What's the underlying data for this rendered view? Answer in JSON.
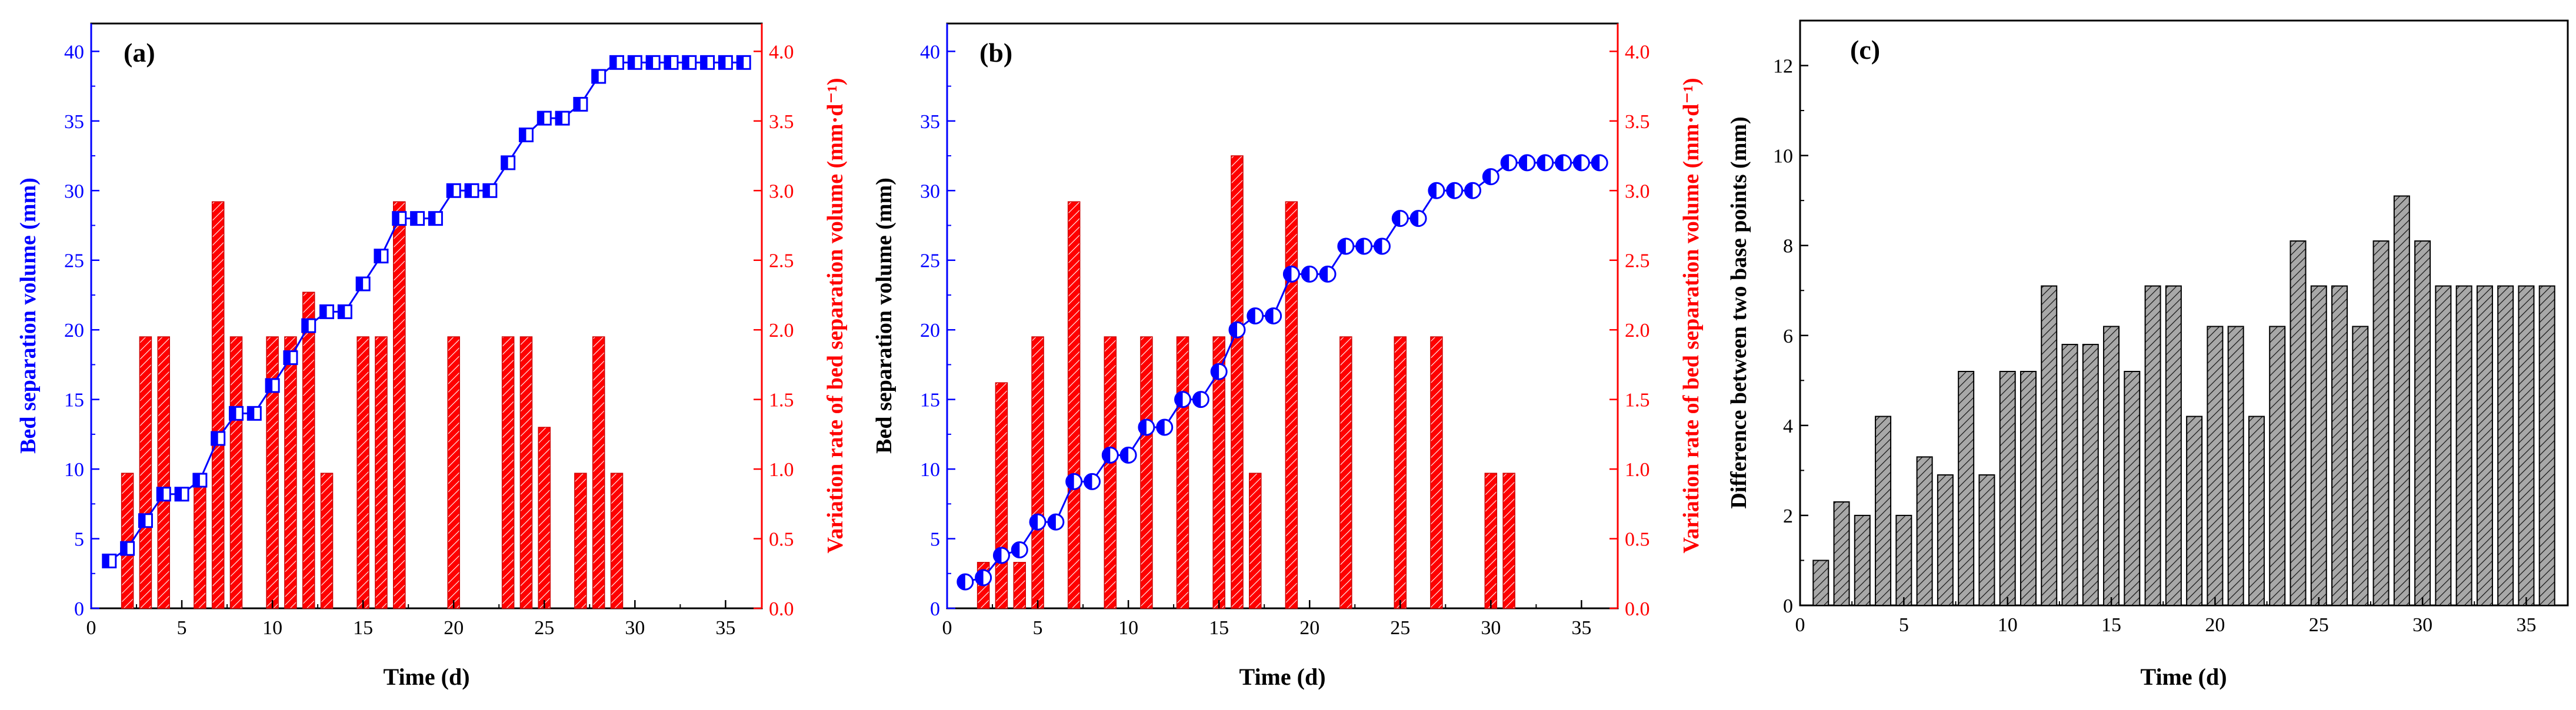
{
  "chart_data": [
    {
      "type": "bar+line",
      "panel_label": "(a)",
      "xlabel": "Time (d)",
      "ylabel_left": "Bed separation volume (mm)",
      "ylabel_right": "Variation rate of bed separation volume (mm·d⁻¹)",
      "xlim": [
        0,
        37
      ],
      "ylim_left": [
        0,
        42
      ],
      "ylim_right": [
        0,
        4.2
      ],
      "xticks": [
        0,
        5,
        10,
        15,
        20,
        25,
        30,
        35
      ],
      "yticks_left": [
        0,
        5,
        10,
        15,
        20,
        25,
        30,
        35,
        40
      ],
      "yticks_right": [
        0.0,
        0.5,
        1.0,
        1.5,
        2.0,
        2.5,
        3.0,
        3.5,
        4.0
      ],
      "xtick_labels": [
        "0",
        "5",
        "10",
        "15",
        "20",
        "25",
        "30",
        "35"
      ],
      "ytick_labels_left": [
        "0",
        "5",
        "10",
        "15",
        "20",
        "25",
        "30",
        "35",
        "40"
      ],
      "ytick_labels_right": [
        "0.0",
        "0.5",
        "1.0",
        "1.5",
        "2.0",
        "2.5",
        "3.0",
        "3.5",
        "4.0"
      ],
      "line_series": {
        "name": "Bed separation volume",
        "color": "#0000ff",
        "marker": "square-half",
        "x": [
          1,
          2,
          3,
          4,
          5,
          6,
          7,
          8,
          9,
          10,
          11,
          12,
          13,
          14,
          15,
          16,
          17,
          18,
          19,
          20,
          21,
          22,
          23,
          24,
          25,
          26,
          27,
          28,
          29,
          30,
          31,
          32,
          33,
          34,
          35,
          36
        ],
        "values": [
          3.4,
          4.3,
          6.3,
          8.2,
          8.2,
          9.2,
          12.2,
          14.0,
          14.0,
          16.0,
          18.0,
          20.3,
          21.3,
          21.3,
          23.3,
          25.3,
          28.0,
          28.0,
          28.0,
          30.0,
          30.0,
          30.0,
          32.0,
          34.0,
          35.2,
          35.2,
          36.2,
          38.2,
          39.2,
          39.2,
          39.2,
          39.2,
          39.2,
          39.2,
          39.2,
          39.2
        ]
      },
      "bar_series": {
        "name": "Variation rate",
        "color": "#ff0000",
        "x": [
          2,
          3,
          4,
          6,
          7,
          8,
          10,
          11,
          12,
          13,
          15,
          16,
          17,
          20,
          23,
          24,
          25,
          27,
          28,
          29
        ],
        "values": [
          0.97,
          1.95,
          1.95,
          0.97,
          2.92,
          1.95,
          1.95,
          1.95,
          2.27,
          0.97,
          1.95,
          1.95,
          2.92,
          1.95,
          1.95,
          1.95,
          1.3,
          0.97,
          1.95,
          0.97
        ]
      }
    },
    {
      "type": "bar+line",
      "panel_label": "(b)",
      "xlabel": "Time (d)",
      "ylabel_left": "Bed separation volume (mm)",
      "ylabel_right": "Variation rate of bed separation volume (mm·d⁻¹)",
      "xlim": [
        0,
        37
      ],
      "ylim_left": [
        0,
        42
      ],
      "ylim_right": [
        0,
        4.2
      ],
      "xticks": [
        0,
        5,
        10,
        15,
        20,
        25,
        30,
        35
      ],
      "yticks_left": [
        0,
        5,
        10,
        15,
        20,
        25,
        30,
        35,
        40
      ],
      "yticks_right": [
        0.0,
        0.5,
        1.0,
        1.5,
        2.0,
        2.5,
        3.0,
        3.5,
        4.0
      ],
      "xtick_labels": [
        "0",
        "5",
        "10",
        "15",
        "20",
        "25",
        "30",
        "35"
      ],
      "ytick_labels_left": [
        "0",
        "5",
        "10",
        "15",
        "20",
        "25",
        "30",
        "35",
        "40"
      ],
      "ytick_labels_right": [
        "0.0",
        "0.5",
        "1.0",
        "1.5",
        "2.0",
        "2.5",
        "3.0",
        "3.5",
        "4.0"
      ],
      "line_series": {
        "name": "Bed separation volume",
        "color": "#0000ff",
        "marker": "circle-half",
        "x": [
          1,
          2,
          3,
          4,
          5,
          6,
          7,
          8,
          9,
          10,
          11,
          12,
          13,
          14,
          15,
          16,
          17,
          18,
          19,
          20,
          21,
          22,
          23,
          24,
          25,
          26,
          27,
          28,
          29,
          30,
          31,
          32,
          33,
          34,
          35,
          36
        ],
        "values": [
          1.9,
          2.2,
          3.8,
          4.2,
          6.2,
          6.2,
          9.1,
          9.1,
          11.0,
          11.0,
          13.0,
          13.0,
          15.0,
          15.0,
          17.0,
          20.0,
          21.0,
          21.0,
          24.0,
          24.0,
          24.0,
          26.0,
          26.0,
          26.0,
          28.0,
          28.0,
          30.0,
          30.0,
          30.0,
          31.0,
          32.0,
          32.0,
          32.0,
          32.0,
          32.0,
          32.0
        ]
      },
      "bar_series": {
        "name": "Variation rate",
        "color": "#ff0000",
        "x": [
          2,
          3,
          4,
          5,
          7,
          9,
          11,
          13,
          15,
          16,
          17,
          19,
          22,
          25,
          27,
          30,
          31
        ],
        "values": [
          0.33,
          1.62,
          0.33,
          1.95,
          2.92,
          1.95,
          1.95,
          1.95,
          1.95,
          3.25,
          0.97,
          2.92,
          1.95,
          1.95,
          1.95,
          0.97,
          0.97
        ]
      }
    },
    {
      "type": "bar",
      "panel_label": "(c)",
      "xlabel": "Time (d)",
      "ylabel": "Difference between two base points (mm)",
      "xlim": [
        0,
        37
      ],
      "ylim": [
        0,
        13
      ],
      "xticks": [
        0,
        5,
        10,
        15,
        20,
        25,
        30,
        35
      ],
      "yticks": [
        0,
        2,
        4,
        6,
        8,
        10,
        12
      ],
      "xtick_labels": [
        "0",
        "5",
        "10",
        "15",
        "20",
        "25",
        "30",
        "35"
      ],
      "ytick_labels": [
        "0",
        "2",
        "4",
        "6",
        "8",
        "10",
        "12"
      ],
      "bar_color": "#888888",
      "x": [
        1,
        2,
        3,
        4,
        5,
        6,
        7,
        8,
        9,
        10,
        11,
        12,
        13,
        14,
        15,
        16,
        17,
        18,
        19,
        20,
        21,
        22,
        23,
        24,
        25,
        26,
        27,
        28,
        29,
        30,
        31,
        32,
        33,
        34,
        35,
        36
      ],
      "values": [
        1.0,
        2.3,
        2.0,
        4.2,
        2.0,
        3.3,
        2.9,
        5.2,
        2.9,
        5.2,
        5.2,
        7.1,
        5.8,
        5.8,
        6.2,
        5.2,
        7.1,
        7.1,
        4.2,
        6.2,
        6.2,
        4.2,
        6.2,
        8.1,
        7.1,
        7.1,
        6.2,
        8.1,
        9.1,
        8.1,
        7.1,
        7.1,
        7.1,
        7.1,
        7.1,
        7.1
      ]
    }
  ],
  "colors": {
    "left_axis": "#0000ff",
    "right_axis": "#ff0000",
    "frame": "#000000"
  }
}
